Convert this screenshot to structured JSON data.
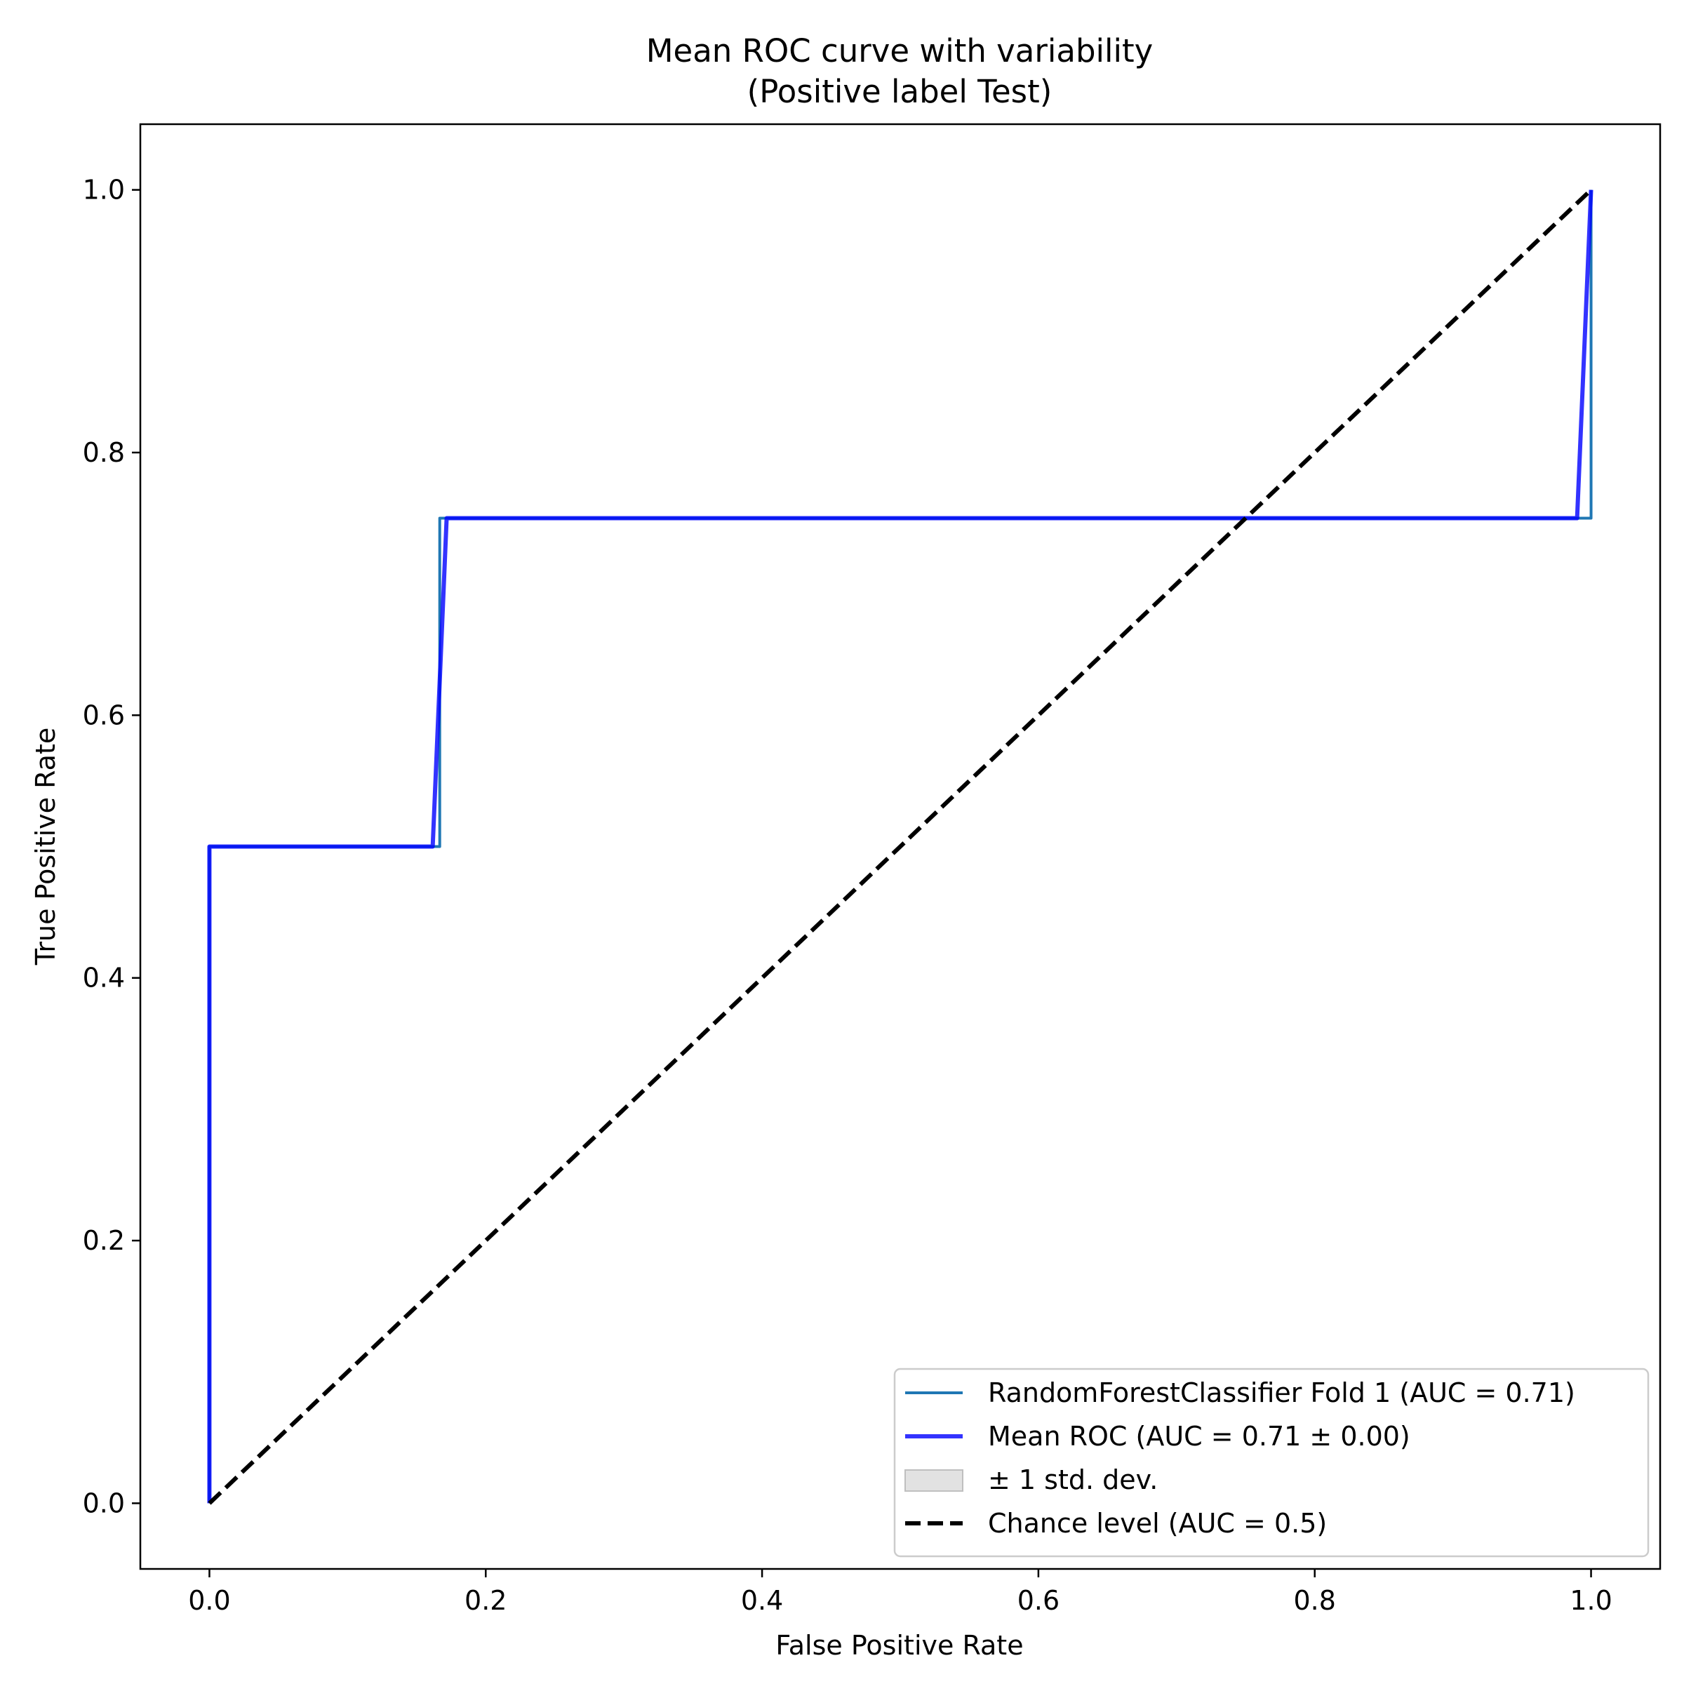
{
  "chart_data": {
    "type": "line",
    "title": "Mean ROC curve with variability",
    "subtitle": "(Positive label Test)",
    "xlabel": "False Positive Rate",
    "ylabel": "True Positive Rate",
    "xlim": [
      -0.05,
      1.05
    ],
    "ylim": [
      -0.05,
      1.05
    ],
    "xticks": [
      0.0,
      0.2,
      0.4,
      0.6,
      0.8,
      1.0
    ],
    "xtick_labels": [
      "0.0",
      "0.2",
      "0.4",
      "0.6",
      "0.8",
      "1.0"
    ],
    "yticks": [
      0.0,
      0.2,
      0.4,
      0.6,
      0.8,
      1.0
    ],
    "ytick_labels": [
      "0.0",
      "0.2",
      "0.4",
      "0.6",
      "0.8",
      "1.0"
    ],
    "grid": false,
    "legend_position": "lower right",
    "series": [
      {
        "name": "RandomForestClassifier Fold 1 (AUC = 0.71)",
        "color": "#1f77b4",
        "line_style": "solid",
        "x": [
          0.0,
          0.0,
          0.1667,
          0.1667,
          1.0,
          1.0
        ],
        "y": [
          0.0,
          0.5,
          0.5,
          0.75,
          0.75,
          1.0
        ]
      },
      {
        "name": "Mean ROC (AUC = 0.71 ± 0.00)",
        "color": "#0000ff",
        "line_style": "solid",
        "x": [
          0.0,
          0.0,
          0.1616,
          0.1717,
          0.9899,
          1.0
        ],
        "y": [
          0.0,
          0.5,
          0.5,
          0.75,
          0.75,
          1.0
        ]
      },
      {
        "name": "± 1 std. dev.",
        "color": "#bfbfbf",
        "line_style": "fill"
      },
      {
        "name": "Chance level (AUC = 0.5)",
        "color": "#000000",
        "line_style": "dashed",
        "x": [
          0.0,
          1.0
        ],
        "y": [
          0.0,
          1.0
        ]
      }
    ]
  }
}
